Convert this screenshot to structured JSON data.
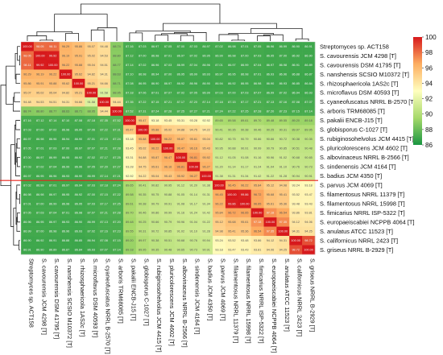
{
  "chart_data": {
    "type": "heatmap",
    "title": "",
    "labels": [
      "Streptomyces sp. ACT158",
      "S. cavourensis JCM 4298 [T]",
      "S. cavourensis DSM 41795 [T]",
      "S. nanshensis SCSIO M10372 [T]",
      "S. rhizosphaericola 1AS2c [T]",
      "S. microflavus DSM 40593 [T]",
      "S. cyaneofuscatus NRRL B-2570 [T]",
      "S. arboris TRM68085 [T]",
      "S. pakalii ENCB-J15 [T]",
      "S. globisporus C-1027 [T]",
      "S. rubiginosohelvolus JCM 4415 [T]",
      "S. pluricolorescens JCM 4602 [T]",
      "S. albovinaceus NRRL B-2566 [T]",
      "S. sindenensis JCM 4164 [T]",
      "S. badius JCM 4350 [T]",
      "S. parvus JCM 4069 [T]",
      "S. filamentosus NRRL 11379 [T]",
      "S. filamentosus NRRL 15998 [T]",
      "S. fimicarius NRRL ISP-5322 [T]",
      "S. europaeiscabiei NCPPB 4064 [T]",
      "S. anulatus ATCC 11523 [T]",
      "S. californicus NRRL 2423 [T]",
      "S. griseus NRRL B-2929 [T]"
    ],
    "values": [
      [
        100.0,
        98.05,
        98.11,
        96.29,
        95.86,
        95.07,
        94.48,
        88.74,
        87.16,
        87.03,
        86.97,
        87.05,
        87.0,
        87.03,
        86.97,
        87.02,
        86.98,
        87.01,
        87.05,
        86.96,
        86.99,
        86.9,
        86.91
      ],
      [
        98.05,
        100.0,
        99.92,
        96.19,
        95.91,
        95.02,
        94.53,
        88.8,
        87.12,
        87.0,
        86.98,
        87.01,
        86.97,
        87.02,
        86.95,
        86.99,
        86.98,
        87.0,
        87.03,
        86.95,
        87.0,
        86.92,
        86.9
      ],
      [
        98.11,
        99.92,
        100.0,
        96.22,
        95.88,
        95.04,
        94.51,
        88.77,
        87.14,
        87.02,
        86.96,
        87.03,
        86.99,
        87.04,
        86.96,
        87.01,
        86.97,
        86.99,
        87.04,
        86.97,
        86.98,
        86.91,
        86.89
      ],
      [
        96.29,
        96.19,
        96.22,
        100.0,
        95.62,
        94.82,
        94.31,
        88.63,
        87.1,
        86.98,
        86.94,
        87.0,
        86.95,
        86.99,
        86.93,
        86.97,
        86.95,
        86.98,
        87.01,
        86.93,
        86.96,
        86.88,
        86.87
      ],
      [
        95.86,
        95.91,
        95.88,
        95.62,
        100.0,
        95.21,
        94.66,
        88.71,
        87.08,
        86.95,
        86.9,
        86.97,
        86.92,
        86.96,
        86.9,
        86.94,
        86.92,
        86.95,
        86.98,
        86.9,
        86.93,
        86.85,
        86.84
      ],
      [
        95.07,
        95.02,
        95.04,
        94.82,
        95.21,
        100.0,
        91.58,
        88.95,
        87.18,
        87.06,
        87.01,
        87.07,
        87.02,
        87.05,
        86.99,
        87.03,
        87.0,
        87.03,
        87.07,
        86.99,
        87.02,
        86.94,
        86.93
      ],
      [
        94.48,
        94.53,
        94.51,
        94.31,
        94.66,
        91.58,
        100.0,
        94.44,
        87.35,
        87.22,
        87.15,
        87.21,
        87.17,
        87.2,
        87.14,
        87.18,
        87.15,
        87.17,
        87.21,
        87.13,
        87.16,
        87.08,
        87.07
      ],
      [
        88.74,
        88.8,
        88.77,
        88.63,
        88.71,
        88.95,
        94.44,
        100.0,
        87.52,
        87.31,
        87.24,
        87.28,
        87.25,
        87.27,
        87.21,
        87.24,
        87.22,
        87.25,
        87.28,
        87.2,
        87.23,
        87.15,
        87.14
      ],
      [
        87.16,
        87.12,
        87.14,
        87.1,
        87.08,
        87.18,
        87.35,
        87.52,
        100.0,
        95.47,
        93.18,
        93.45,
        93.31,
        93.28,
        92.92,
        89.65,
        89.58,
        89.61,
        89.7,
        89.48,
        89.55,
        89.2,
        89.18
      ],
      [
        87.03,
        87.0,
        87.02,
        86.98,
        86.95,
        87.06,
        87.22,
        87.31,
        95.47,
        100.0,
        95.88,
        95.02,
        94.88,
        94.75,
        94.22,
        90.41,
        90.35,
        90.38,
        90.46,
        90.25,
        90.31,
        89.97,
        89.95
      ],
      [
        86.97,
        86.98,
        86.96,
        86.94,
        86.9,
        87.01,
        87.15,
        87.24,
        93.18,
        95.88,
        100.0,
        96.22,
        95.87,
        95.61,
        95.04,
        90.82,
        90.75,
        90.79,
        90.86,
        90.66,
        90.72,
        90.38,
        90.35
      ],
      [
        87.05,
        87.01,
        87.03,
        87.0,
        86.97,
        87.07,
        87.21,
        87.28,
        93.45,
        95.02,
        96.22,
        100.0,
        96.47,
        96.16,
        95.43,
        90.95,
        90.88,
        90.91,
        90.99,
        90.79,
        90.85,
        90.51,
        90.48
      ],
      [
        87.0,
        86.97,
        86.99,
        86.95,
        86.92,
        87.02,
        87.17,
        87.25,
        93.31,
        94.88,
        95.87,
        96.47,
        100.0,
        96.81,
        95.92,
        91.12,
        91.05,
        91.08,
        91.16,
        90.96,
        91.02,
        90.68,
        90.65
      ],
      [
        87.03,
        87.02,
        87.04,
        86.99,
        86.96,
        87.05,
        87.2,
        87.27,
        93.28,
        94.75,
        95.61,
        96.16,
        96.81,
        100.0,
        96.27,
        91.2,
        91.14,
        91.17,
        91.24,
        91.04,
        91.1,
        90.76,
        90.73
      ],
      [
        86.97,
        86.95,
        86.96,
        86.93,
        86.9,
        86.99,
        87.14,
        87.21,
        92.92,
        94.22,
        95.04,
        95.43,
        95.92,
        96.27,
        100.0,
        91.38,
        91.31,
        91.34,
        91.42,
        91.22,
        91.28,
        90.94,
        90.91
      ],
      [
        87.02,
        86.99,
        87.01,
        86.97,
        86.94,
        87.03,
        87.18,
        87.24,
        89.65,
        90.41,
        90.82,
        90.95,
        91.12,
        91.2,
        91.38,
        100.0,
        96.45,
        96.22,
        95.84,
        95.12,
        94.98,
        93.24,
        93.18
      ],
      [
        86.98,
        86.98,
        86.97,
        86.95,
        86.92,
        87.0,
        87.15,
        87.22,
        89.58,
        90.35,
        90.75,
        90.88,
        91.05,
        91.14,
        91.31,
        96.45,
        100.0,
        99.86,
        96.72,
        95.68,
        95.41,
        93.52,
        93.47
      ],
      [
        87.01,
        87.0,
        86.99,
        86.98,
        86.95,
        87.03,
        87.17,
        87.25,
        89.61,
        90.38,
        90.79,
        90.91,
        91.08,
        91.17,
        91.34,
        96.22,
        99.86,
        100.0,
        96.65,
        95.61,
        95.36,
        93.48,
        93.43
      ],
      [
        87.05,
        87.03,
        87.04,
        87.01,
        86.98,
        87.07,
        87.21,
        87.28,
        89.7,
        90.46,
        90.86,
        90.99,
        91.16,
        91.24,
        91.42,
        95.84,
        96.72,
        96.65,
        100.0,
        97.18,
        96.54,
        93.86,
        93.81
      ],
      [
        86.96,
        86.95,
        86.97,
        86.93,
        86.9,
        86.99,
        87.13,
        87.2,
        89.48,
        90.25,
        90.66,
        90.79,
        90.96,
        91.04,
        91.22,
        95.12,
        95.68,
        95.61,
        97.18,
        100.0,
        97.35,
        94.12,
        94.06
      ],
      [
        86.99,
        87.0,
        86.98,
        86.96,
        86.93,
        87.02,
        87.16,
        87.23,
        89.55,
        90.31,
        90.72,
        90.85,
        91.02,
        91.1,
        91.28,
        94.98,
        95.41,
        95.36,
        96.54,
        97.35,
        100.0,
        94.31,
        94.25
      ],
      [
        86.9,
        86.92,
        86.91,
        86.88,
        86.85,
        86.94,
        87.08,
        87.15,
        89.2,
        89.97,
        90.38,
        90.51,
        90.68,
        90.76,
        90.94,
        93.24,
        93.52,
        93.48,
        93.86,
        94.12,
        94.31,
        100.0,
        98.72
      ],
      [
        86.91,
        86.9,
        86.89,
        86.87,
        86.84,
        86.93,
        87.07,
        87.14,
        89.18,
        89.95,
        90.35,
        90.48,
        90.65,
        90.73,
        90.91,
        93.18,
        93.47,
        93.43,
        93.81,
        94.06,
        94.25,
        98.72,
        100.0
      ]
    ],
    "color_scale": {
      "min": 86,
      "max": 100,
      "ticks": [
        86,
        88,
        90,
        92,
        94,
        96,
        98,
        100
      ],
      "colors": [
        "#1a9641",
        "#a6d96a",
        "#ffffbf",
        "#fdae61",
        "#d7191c"
      ]
    },
    "cut_line_color": "#e8231c",
    "cut_after_row": 14,
    "row_dendrogram": true,
    "column_dendrogram": true,
    "legend_placement": "right"
  }
}
